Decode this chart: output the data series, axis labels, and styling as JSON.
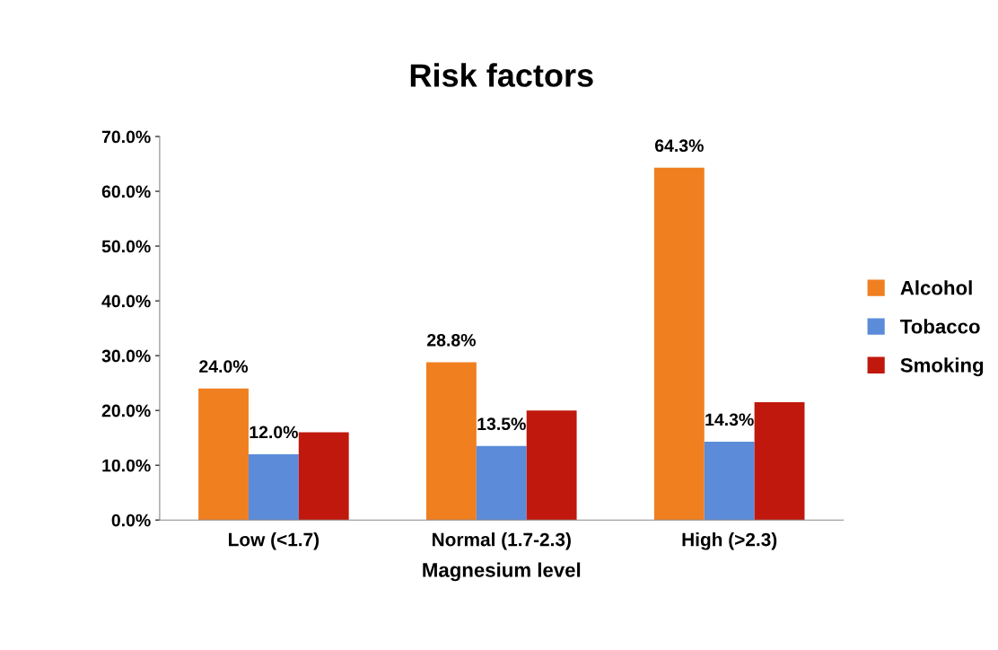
{
  "chart_data": {
    "type": "bar",
    "title": "Risk factors",
    "xlabel": "Magnesium level",
    "categories": [
      "Low (<1.7)",
      "Normal (1.7-2.3)",
      "High (>2.3)"
    ],
    "series": [
      {
        "name": "Alcohol",
        "color": "#f07f20",
        "values": [
          24.0,
          28.8,
          64.3
        ],
        "value_labels": [
          "24.0%",
          "28.8%",
          "64.3%"
        ]
      },
      {
        "name": "Tobacco",
        "color": "#5b8bd9",
        "values": [
          12.0,
          13.5,
          14.3
        ],
        "value_labels": [
          "12.0%",
          "13.5%",
          "14.3%"
        ]
      },
      {
        "name": "Smoking",
        "color": "#c0180c",
        "values": [
          16.0,
          20.0,
          21.5
        ],
        "value_labels": [
          null,
          null,
          null
        ]
      }
    ],
    "ylim": [
      0,
      70
    ],
    "yticks": [
      {
        "value": 0,
        "label": "0.0%"
      },
      {
        "value": 10,
        "label": "10.0%"
      },
      {
        "value": 20,
        "label": "20.0%"
      },
      {
        "value": 30,
        "label": "30.0%"
      },
      {
        "value": 40,
        "label": "40.0%"
      },
      {
        "value": 50,
        "label": "50.0%"
      },
      {
        "value": 60,
        "label": "60.0%"
      },
      {
        "value": 70,
        "label": "70.0%"
      }
    ],
    "grid": false,
    "legend": "right"
  }
}
